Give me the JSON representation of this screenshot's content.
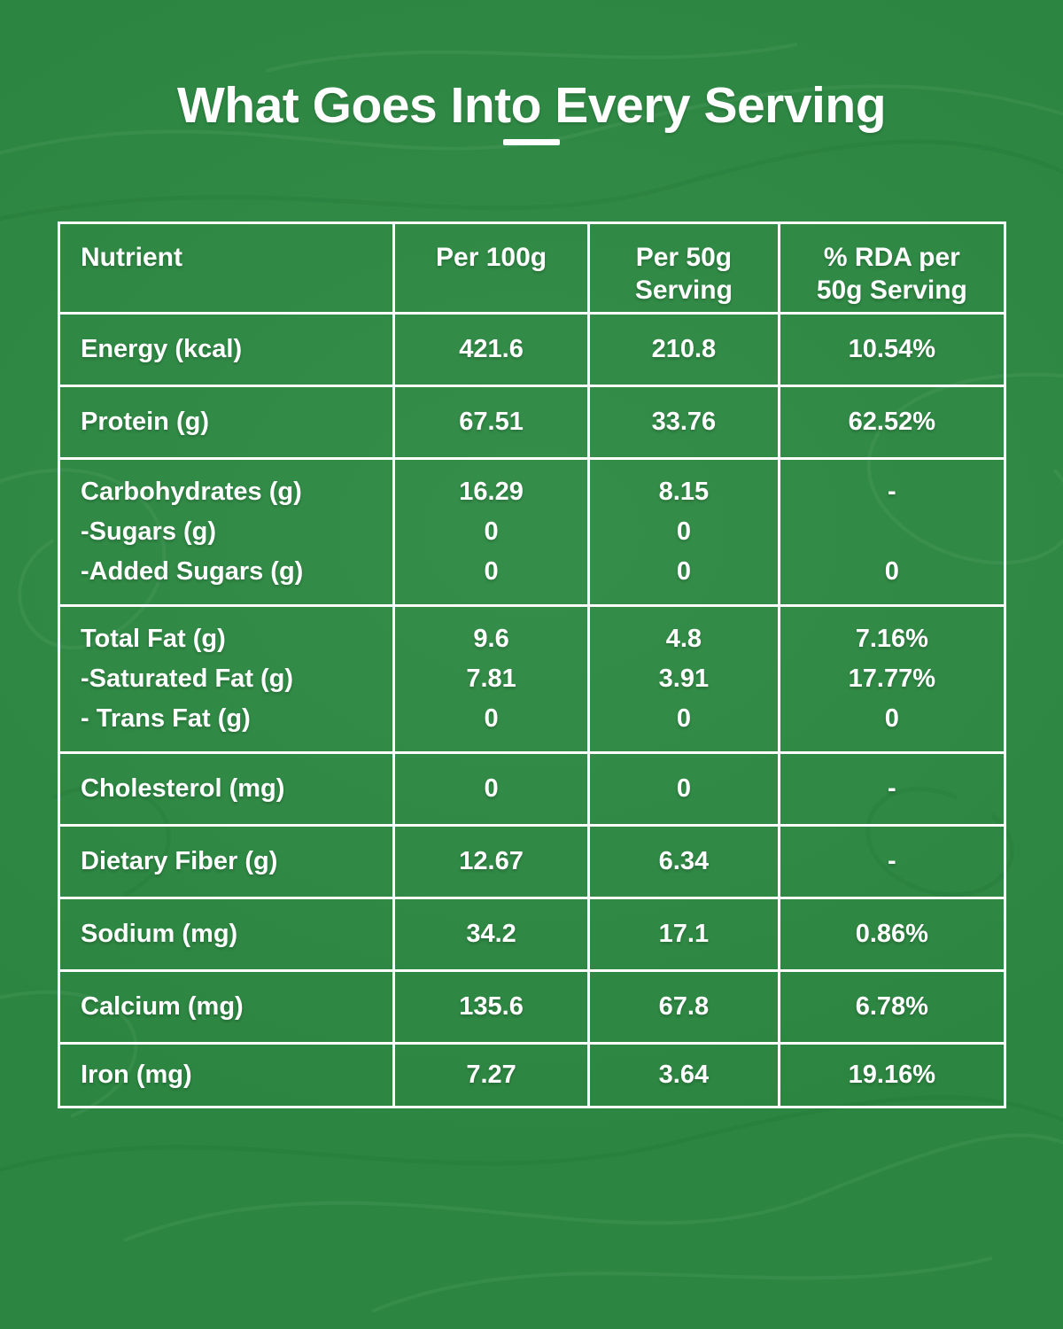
{
  "colors": {
    "background": "#2e8b44",
    "text": "#ffffff",
    "grid_lines": "#ffffff"
  },
  "header": {
    "title": "What Goes Into Every Serving"
  },
  "table": {
    "column_headers": [
      {
        "lines": [
          "Nutrient"
        ]
      },
      {
        "lines": [
          "Per 100g"
        ]
      },
      {
        "lines": [
          "Per 50g",
          "Serving"
        ]
      },
      {
        "lines": [
          "% RDA per",
          "50g Serving"
        ]
      }
    ],
    "rows": [
      {
        "cells": [
          [
            "Energy (kcal)"
          ],
          [
            "421.6"
          ],
          [
            "210.8"
          ],
          [
            "10.54%"
          ]
        ]
      },
      {
        "cells": [
          [
            "Protein (g)"
          ],
          [
            "67.51"
          ],
          [
            "33.76"
          ],
          [
            "62.52%"
          ]
        ]
      },
      {
        "cells": [
          [
            "Carbohydrates (g)",
            "-Sugars (g)",
            "-Added Sugars (g)"
          ],
          [
            "16.29",
            "0",
            "0"
          ],
          [
            "8.15",
            "0",
            "0"
          ],
          [
            "-",
            "",
            "0"
          ]
        ]
      },
      {
        "cells": [
          [
            "Total Fat (g)",
            "-Saturated Fat (g)",
            "- Trans Fat (g)"
          ],
          [
            "9.6",
            "7.81",
            "0"
          ],
          [
            "4.8",
            "3.91",
            "0"
          ],
          [
            "7.16%",
            "17.77%",
            "0"
          ]
        ]
      },
      {
        "cells": [
          [
            "Cholesterol (mg)"
          ],
          [
            "0"
          ],
          [
            "0"
          ],
          [
            "-"
          ]
        ]
      },
      {
        "cells": [
          [
            "Dietary Fiber (g)"
          ],
          [
            "12.67"
          ],
          [
            "6.34"
          ],
          [
            "-"
          ]
        ]
      },
      {
        "cells": [
          [
            "Sodium (mg)"
          ],
          [
            "34.2"
          ],
          [
            "17.1"
          ],
          [
            "0.86%"
          ]
        ]
      },
      {
        "cells": [
          [
            "Calcium (mg)"
          ],
          [
            "135.6"
          ],
          [
            "67.8"
          ],
          [
            "6.78%"
          ]
        ]
      },
      {
        "cells": [
          [
            "Iron (mg)"
          ],
          [
            "7.27"
          ],
          [
            "3.64"
          ],
          [
            "19.16%"
          ]
        ]
      }
    ]
  },
  "chart_data": {
    "type": "table",
    "title": "What Goes Into Every Serving",
    "columns": [
      "Nutrient",
      "Per 100g",
      "Per 50g Serving",
      "% RDA per 50g Serving"
    ],
    "rows": [
      [
        "Energy (kcal)",
        "421.6",
        "210.8",
        "10.54%"
      ],
      [
        "Protein (g)",
        "67.51",
        "33.76",
        "62.52%"
      ],
      [
        "Carbohydrates (g)",
        "16.29",
        "8.15",
        "-"
      ],
      [
        "-Sugars (g)",
        "0",
        "0",
        ""
      ],
      [
        "-Added Sugars (g)",
        "0",
        "0",
        "0"
      ],
      [
        "Total Fat (g)",
        "9.6",
        "4.8",
        "7.16%"
      ],
      [
        "-Saturated Fat (g)",
        "7.81",
        "3.91",
        "17.77%"
      ],
      [
        "- Trans Fat (g)",
        "0",
        "0",
        "0"
      ],
      [
        "Cholesterol (mg)",
        "0",
        "0",
        "-"
      ],
      [
        "Dietary Fiber (g)",
        "12.67",
        "6.34",
        "-"
      ],
      [
        "Sodium (mg)",
        "34.2",
        "17.1",
        "0.86%"
      ],
      [
        "Calcium (mg)",
        "135.6",
        "67.8",
        "6.78%"
      ],
      [
        "Iron (mg)",
        "7.27",
        "3.64",
        "19.16%"
      ]
    ],
    "layout": "header row on top, first column left-aligned labels, numeric columns centered, white 3px grid on green background"
  }
}
